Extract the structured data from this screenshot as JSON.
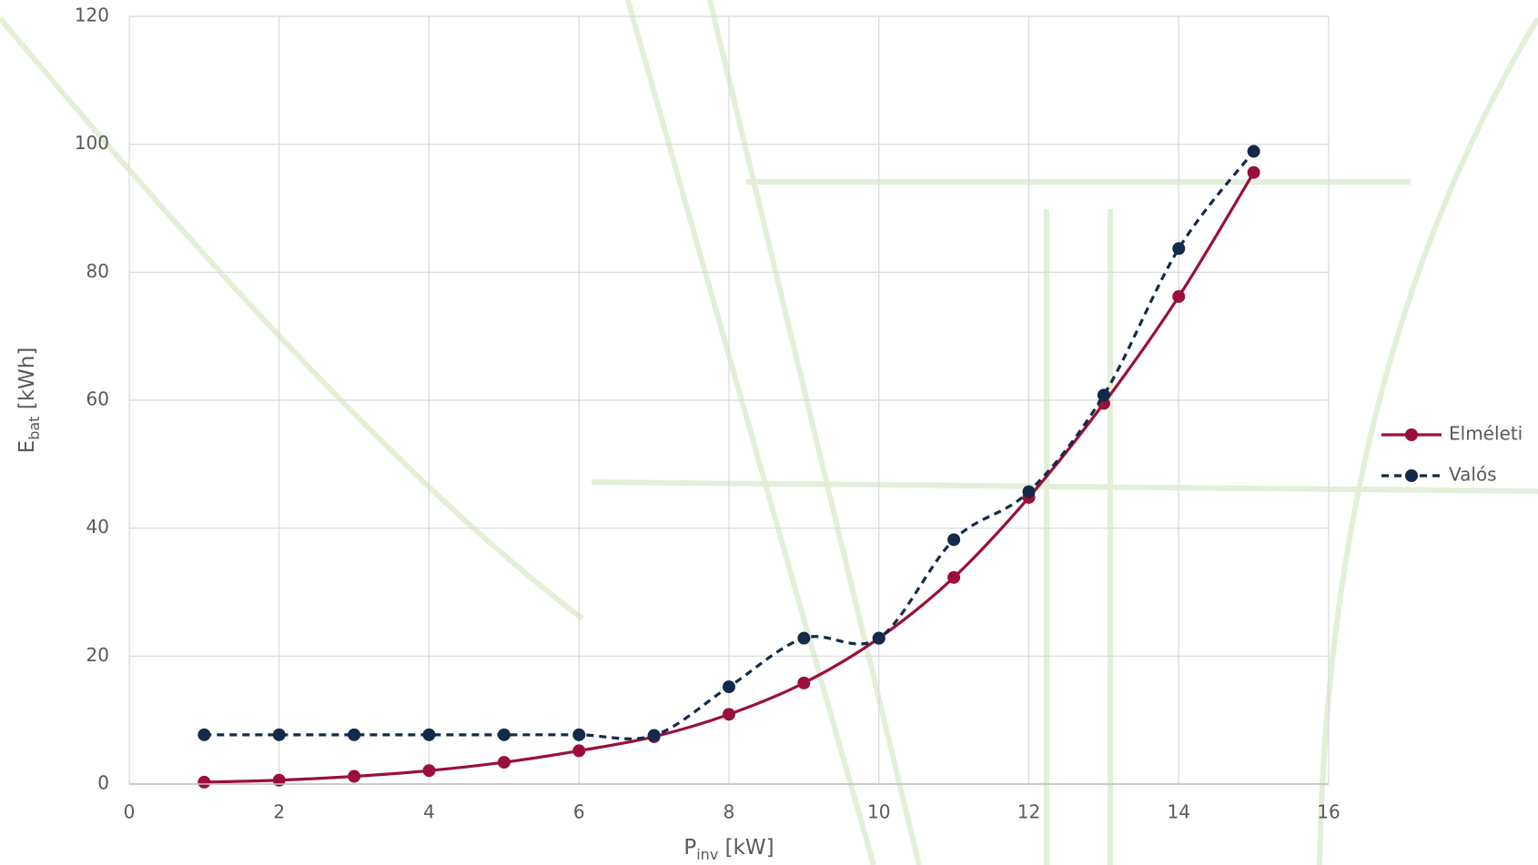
{
  "chart_data": {
    "type": "line",
    "x_label": {
      "main": "P",
      "sub": "inv",
      "unit": "[kW]"
    },
    "y_label": {
      "main": "E",
      "sub": "bat",
      "unit": "[kWh]"
    },
    "x": [
      1,
      2,
      3,
      4,
      5,
      6,
      7,
      8,
      9,
      10,
      11,
      12,
      13,
      14,
      15
    ],
    "series": [
      {
        "name": "Elméleti",
        "color": "#9a0f3b",
        "line_style": "solid",
        "values": [
          0.3,
          0.6,
          1.2,
          2.1,
          3.4,
          5.2,
          7.4,
          10.9,
          15.8,
          22.8,
          32.3,
          44.8,
          59.5,
          76.2,
          95.6
        ]
      },
      {
        "name": "Valós",
        "color": "#132a4a",
        "line_style": "dashed",
        "values": [
          7.7,
          7.7,
          7.7,
          7.7,
          7.7,
          7.7,
          7.6,
          15.2,
          22.8,
          22.8,
          38.2,
          45.7,
          60.8,
          83.7,
          98.9
        ]
      }
    ],
    "xlim": [
      0,
      16
    ],
    "xticks": [
      0,
      2,
      4,
      6,
      8,
      10,
      12,
      14,
      16
    ],
    "ylim": [
      0,
      120
    ],
    "yticks": [
      0,
      20,
      40,
      60,
      80,
      100,
      120
    ],
    "grid": true,
    "smooth": true,
    "legend": "right"
  }
}
